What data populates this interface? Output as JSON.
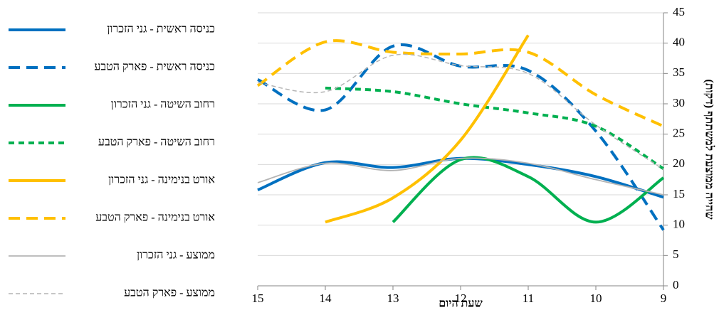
{
  "chart_data": {
    "type": "line",
    "xlabel": "שעת היום",
    "ylabel": "שהייה ממוצעת למשתתף (דקות)",
    "x": [
      15,
      14,
      13,
      12,
      11,
      10,
      9
    ],
    "xlim": [
      15,
      9
    ],
    "xticks": [
      15,
      14,
      13,
      12,
      11,
      10,
      9
    ],
    "ylim": [
      0,
      45
    ],
    "yticks": [
      0,
      5,
      10,
      15,
      20,
      25,
      30,
      35,
      40,
      45
    ],
    "grid": true,
    "smooth": true,
    "legend": "left",
    "series": [
      {
        "name": "כניסה ראשית - גני הזכרון",
        "color": "#0070c0",
        "line_style": "solid",
        "values": [
          15.8,
          20.3,
          19.5,
          21,
          20,
          18,
          14.6
        ]
      },
      {
        "name": "כניסה ראשית - פארק הטבע",
        "color": "#0070c0",
        "line_style": "dashed",
        "values": [
          34,
          29,
          39.5,
          36.2,
          35.5,
          25.5,
          9.2
        ]
      },
      {
        "name": "רחוב השיטה - גני הזכרון",
        "color": "#00b050",
        "line_style": "solid",
        "values": [
          null,
          null,
          10.5,
          20.8,
          18,
          10.5,
          17.8
        ]
      },
      {
        "name": "רחוב השיטה - פארק הטבע",
        "color": "#00b050",
        "line_style": "dotted",
        "values": [
          null,
          32.6,
          32,
          30,
          28.5,
          26.3,
          19.3
        ]
      },
      {
        "name": "אורט בנימינה - גני הזכרון",
        "color": "#ffc000",
        "line_style": "solid",
        "values": [
          null,
          10.5,
          14.5,
          24,
          41.3,
          null,
          null
        ]
      },
      {
        "name": "אורט בנימינה - פארק הטבע",
        "color": "#ffc000",
        "line_style": "dashed",
        "values": [
          33,
          40.2,
          38.5,
          38.2,
          38.5,
          31.5,
          26.3
        ]
      },
      {
        "name": "ממוצע - גני הזכרון",
        "color": "#b4b4b4",
        "line_style": "thin",
        "values": [
          17,
          20.2,
          19,
          21,
          20.2,
          17.5,
          15
        ]
      },
      {
        "name": "ממוצע - פארק הטבע",
        "color": "#b4b4b4",
        "line_style": "thin-dashed",
        "values": [
          33.5,
          32,
          38,
          36.3,
          35,
          26.5,
          19.2
        ]
      }
    ]
  }
}
